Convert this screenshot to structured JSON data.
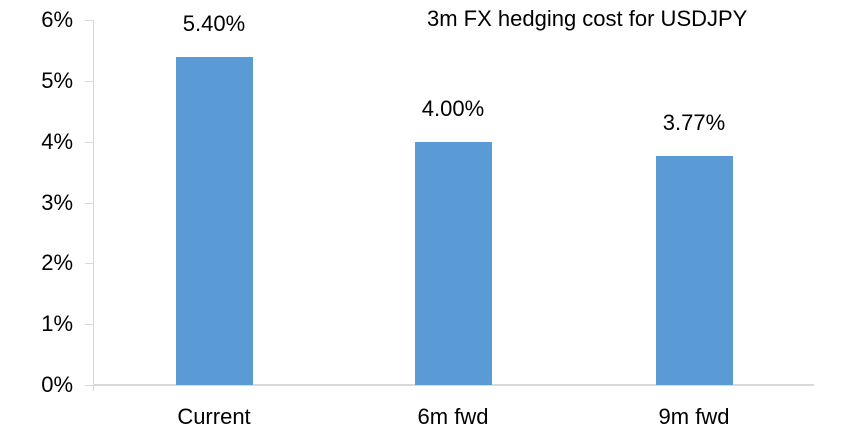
{
  "chart_data": {
    "type": "bar",
    "title": "3m FX hedging cost for USDJPY",
    "categories": [
      "Current",
      "6m fwd",
      "9m fwd"
    ],
    "values": [
      5.4,
      4.0,
      3.77
    ],
    "data_labels": [
      "5.40%",
      "4.00%",
      "3.77%"
    ],
    "y_ticks": [
      "6%",
      "5%",
      "4%",
      "3%",
      "2%",
      "1%",
      "0%"
    ],
    "ylim": [
      0,
      6
    ],
    "xlabel": "",
    "ylabel": "",
    "grid": false,
    "legend": "none",
    "bar_color": "#5B9BD5",
    "axis_color": "#D9D9D9",
    "text_color": "#000000"
  }
}
